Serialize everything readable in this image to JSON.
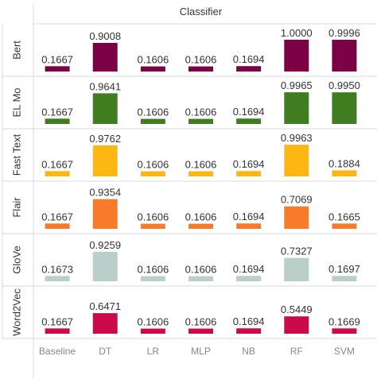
{
  "chart_data": {
    "type": "bar",
    "title": "Classifier",
    "categories": [
      "Baseline",
      "DT",
      "LR",
      "MLP",
      "NB",
      "RF",
      "SVM"
    ],
    "ylim": [
      0,
      1
    ],
    "grid": false,
    "series": [
      {
        "name": "Bert",
        "color": "#7b0045",
        "values": [
          0.1667,
          0.9008,
          0.1606,
          0.1606,
          0.1694,
          1.0,
          0.9996
        ],
        "labels": [
          "0.1667",
          "0.9008",
          "0.1606",
          "0.1606",
          "0.1694",
          "1.0000",
          "0.9996"
        ]
      },
      {
        "name": "EL Mo",
        "color": "#3f7d20",
        "values": [
          0.1667,
          0.9641,
          0.1606,
          0.1606,
          0.1694,
          0.9965,
          0.995
        ],
        "labels": [
          "0.1667",
          "0.9641",
          "0.1606",
          "0.1606",
          "0.1694",
          "0.9965",
          "0.9950"
        ]
      },
      {
        "name": "Fast Text",
        "color": "#fcb712",
        "values": [
          0.1667,
          0.9762,
          0.1606,
          0.1606,
          0.1694,
          0.9963,
          0.1884
        ],
        "labels": [
          "0.1667",
          "0.9762",
          "0.1606",
          "0.1606",
          "0.1694",
          "0.9963",
          "0.1884"
        ]
      },
      {
        "name": "Flair",
        "color": "#f77b29",
        "values": [
          0.1667,
          0.9354,
          0.1606,
          0.1606,
          0.1694,
          0.7069,
          0.1665
        ],
        "labels": [
          "0.1667",
          "0.9354",
          "0.1606",
          "0.1606",
          "0.1694",
          "0.7069",
          "0.1665"
        ]
      },
      {
        "name": "GloVe",
        "color": "#bacfca",
        "values": [
          0.1673,
          0.9259,
          0.1606,
          0.1606,
          0.1694,
          0.7327,
          0.1697
        ],
        "labels": [
          "0.1673",
          "0.9259",
          "0.1606",
          "0.1606",
          "0.1694",
          "0.7327",
          "0.1697"
        ]
      },
      {
        "name": "Word2Vec",
        "color": "#cc0a4b",
        "values": [
          0.1667,
          0.6471,
          0.1606,
          0.1606,
          0.1694,
          0.5449,
          0.1669
        ],
        "labels": [
          "0.1667",
          "0.6471",
          "0.1606",
          "0.1606",
          "0.1694",
          "0.5449",
          "0.1669"
        ]
      }
    ]
  }
}
